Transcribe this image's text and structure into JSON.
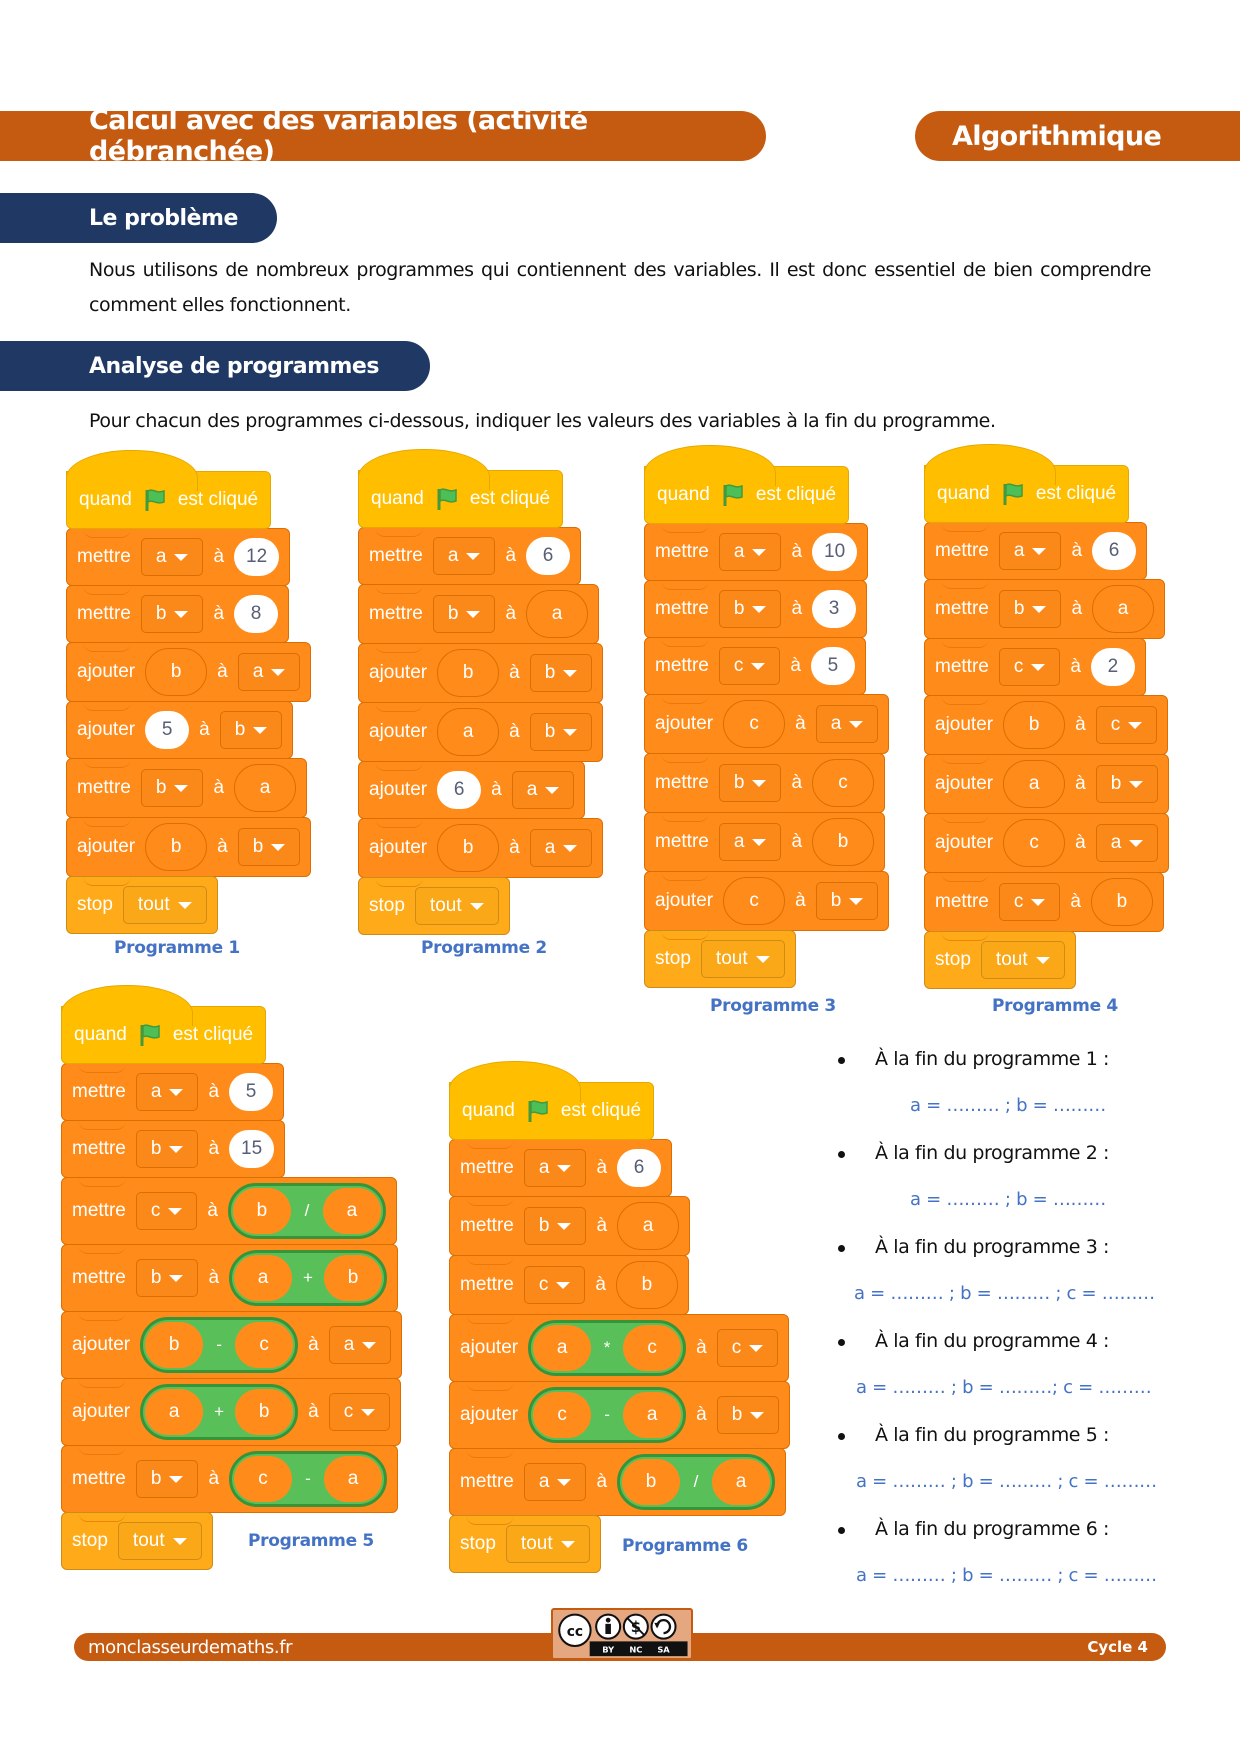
{
  "header": {
    "title": "Calcul avec des variables (activité débranchée)",
    "category": "Algorithmique"
  },
  "sections": {
    "problem": {
      "title": "Le problème",
      "text": "Nous utilisons de nombreux programmes qui contiennent des variables. Il est donc essentiel de bien comprendre comment elles fonctionnent."
    },
    "analysis": {
      "title": "Analyse de programmes",
      "text": "Pour chacun des programmes ci-dessous, indiquer les valeurs des variables à la fin du programme."
    }
  },
  "blocks": {
    "hat_when": "quand",
    "hat_clicked": "est cliqué",
    "set": "mettre",
    "change": "ajouter",
    "to": "à",
    "stop": "stop",
    "stop_option": "tout"
  },
  "programs": [
    {
      "label": "Programme 1",
      "steps": [
        {
          "op": "mettre",
          "var": "a",
          "value": "12",
          "kind": "num"
        },
        {
          "op": "mettre",
          "var": "b",
          "value": "8",
          "kind": "num"
        },
        {
          "op": "ajouter",
          "value": "b",
          "kind": "var",
          "var": "a"
        },
        {
          "op": "ajouter",
          "value": "5",
          "kind": "num",
          "var": "b"
        },
        {
          "op": "mettre",
          "var": "b",
          "value": "a",
          "kind": "var"
        },
        {
          "op": "ajouter",
          "value": "b",
          "kind": "var",
          "var": "b"
        }
      ]
    },
    {
      "label": "Programme 2",
      "steps": [
        {
          "op": "mettre",
          "var": "a",
          "value": "6",
          "kind": "num"
        },
        {
          "op": "mettre",
          "var": "b",
          "value": "a",
          "kind": "var"
        },
        {
          "op": "ajouter",
          "value": "b",
          "kind": "var",
          "var": "b"
        },
        {
          "op": "ajouter",
          "value": "a",
          "kind": "var",
          "var": "b"
        },
        {
          "op": "ajouter",
          "value": "6",
          "kind": "num",
          "var": "a"
        },
        {
          "op": "ajouter",
          "value": "b",
          "kind": "var",
          "var": "a"
        }
      ]
    },
    {
      "label": "Programme 3",
      "steps": [
        {
          "op": "mettre",
          "var": "a",
          "value": "10",
          "kind": "num"
        },
        {
          "op": "mettre",
          "var": "b",
          "value": "3",
          "kind": "num"
        },
        {
          "op": "mettre",
          "var": "c",
          "value": "5",
          "kind": "num"
        },
        {
          "op": "ajouter",
          "value": "c",
          "kind": "var",
          "var": "a"
        },
        {
          "op": "mettre",
          "var": "b",
          "value": "c",
          "kind": "var"
        },
        {
          "op": "mettre",
          "var": "a",
          "value": "b",
          "kind": "var"
        },
        {
          "op": "ajouter",
          "value": "c",
          "kind": "var",
          "var": "b"
        }
      ]
    },
    {
      "label": "Programme 4",
      "steps": [
        {
          "op": "mettre",
          "var": "a",
          "value": "6",
          "kind": "num"
        },
        {
          "op": "mettre",
          "var": "b",
          "value": "a",
          "kind": "var"
        },
        {
          "op": "mettre",
          "var": "c",
          "value": "2",
          "kind": "num"
        },
        {
          "op": "ajouter",
          "value": "b",
          "kind": "var",
          "var": "c"
        },
        {
          "op": "ajouter",
          "value": "a",
          "kind": "var",
          "var": "b"
        },
        {
          "op": "ajouter",
          "value": "c",
          "kind": "var",
          "var": "a"
        },
        {
          "op": "mettre",
          "var": "c",
          "value": "b",
          "kind": "var"
        }
      ]
    },
    {
      "label": "Programme 5",
      "steps": [
        {
          "op": "mettre",
          "var": "a",
          "value": "5",
          "kind": "num"
        },
        {
          "op": "mettre",
          "var": "b",
          "value": "15",
          "kind": "num"
        },
        {
          "op": "mettre",
          "var": "c",
          "kind": "expr",
          "left": "b",
          "sym": "/",
          "right": "a"
        },
        {
          "op": "mettre",
          "var": "b",
          "kind": "expr",
          "left": "a",
          "sym": "+",
          "right": "b"
        },
        {
          "op": "ajouter",
          "kind": "expr",
          "left": "b",
          "sym": "-",
          "right": "c",
          "var": "a"
        },
        {
          "op": "ajouter",
          "kind": "expr",
          "left": "a",
          "sym": "+",
          "right": "b",
          "var": "c"
        },
        {
          "op": "mettre",
          "var": "b",
          "kind": "expr",
          "left": "c",
          "sym": "-",
          "right": "a"
        }
      ]
    },
    {
      "label": "Programme 6",
      "steps": [
        {
          "op": "mettre",
          "var": "a",
          "value": "6",
          "kind": "num"
        },
        {
          "op": "mettre",
          "var": "b",
          "value": "a",
          "kind": "var"
        },
        {
          "op": "mettre",
          "var": "c",
          "value": "b",
          "kind": "var"
        },
        {
          "op": "ajouter",
          "kind": "expr",
          "left": "a",
          "sym": "*",
          "right": "c",
          "var": "c"
        },
        {
          "op": "ajouter",
          "kind": "expr",
          "left": "c",
          "sym": "-",
          "right": "a",
          "var": "b"
        },
        {
          "op": "mettre",
          "var": "a",
          "kind": "expr",
          "left": "b",
          "sym": "/",
          "right": "a"
        }
      ]
    }
  ],
  "answers": [
    {
      "question": "À la fin du programme 1 :",
      "blank": "a = ……… ;  b = ………"
    },
    {
      "question": "À la fin du programme 2 :",
      "blank": "a = ……… ;  b = ………"
    },
    {
      "question": "À la fin du programme 3 :",
      "blank": "a = ……… ;  b = ……… ;  c = ………"
    },
    {
      "question": "À la fin du programme 4 :",
      "blank": "a = ……… ;  b = ………;  c = ………"
    },
    {
      "question": "À la fin du programme 5 :",
      "blank": "a = ……… ;  b = ……… ;  c = ………"
    },
    {
      "question": "À la fin du programme 6 :",
      "blank": "a = ……… ;  b = ……… ;  c = ………"
    }
  ],
  "footer": {
    "site": "monclasseurdemaths.fr",
    "level": "Cycle 4",
    "license": {
      "icons": [
        "cc-icon",
        "by-icon",
        "nc-icon",
        "sa-icon"
      ],
      "labels": [
        "BY",
        "NC",
        "SA"
      ]
    }
  },
  "colors": {
    "header_orange": "#c55a11",
    "section_navy": "#1f3864",
    "label_blue": "#4472c4",
    "event_yellow": "#ffbf00",
    "variable_orange": "#ff8c1a",
    "control_orange": "#ffab19",
    "operator_green": "#59c059"
  }
}
